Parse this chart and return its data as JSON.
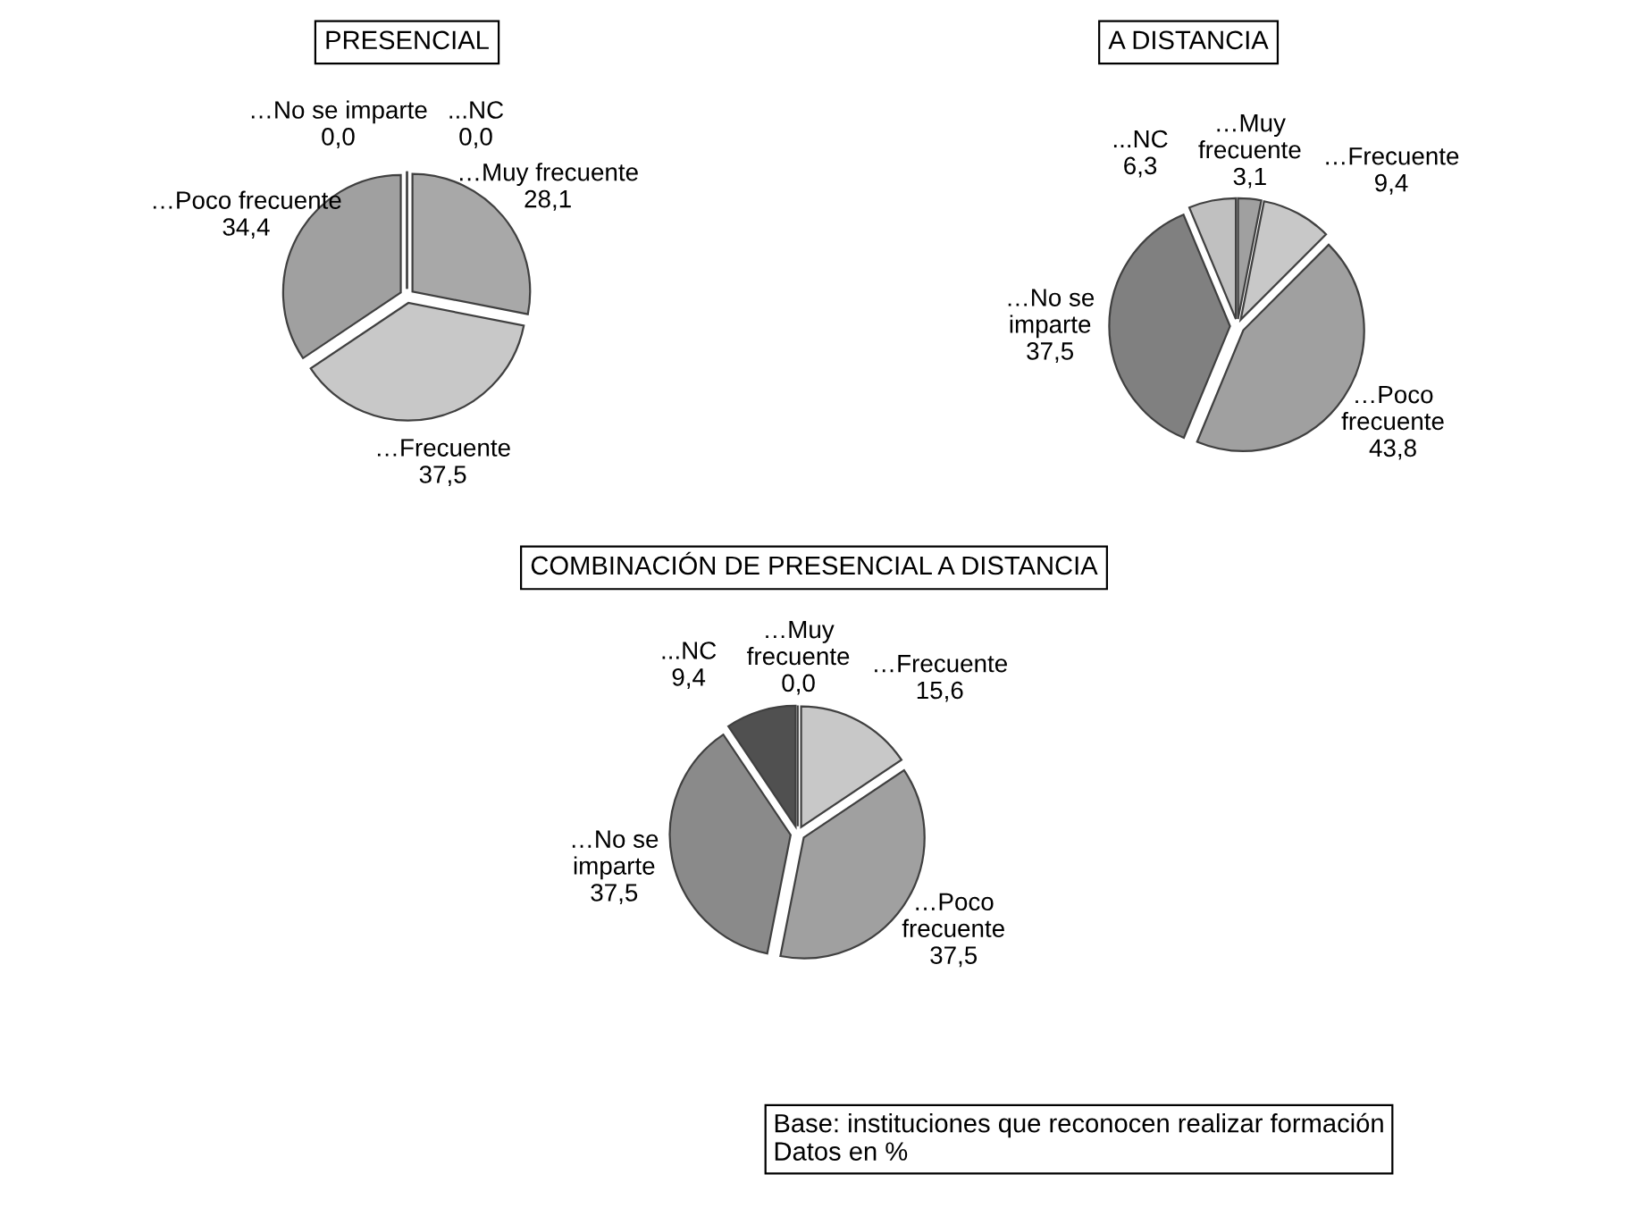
{
  "chart_data": [
    {
      "type": "pie",
      "title": "PRESENCIAL",
      "categories": [
        "…Muy frecuente",
        "…Frecuente",
        "…Poco frecuente",
        "…No se imparte",
        "...NC"
      ],
      "values": [
        28.1,
        37.5,
        34.4,
        0.0,
        0.0
      ],
      "value_labels": [
        "28,1",
        "37,5",
        "34,4",
        "0,0",
        "0,0"
      ],
      "colors": [
        "#a8a8a8",
        "#c8c8c8",
        "#a0a0a0",
        "#808080",
        "#c0c0c0"
      ]
    },
    {
      "type": "pie",
      "title": "A DISTANCIA",
      "categories": [
        "…Muy\nfrecuente",
        "…Frecuente",
        "…Poco\nfrecuente",
        "…No se\nimparte",
        "...NC"
      ],
      "values": [
        3.1,
        9.4,
        43.8,
        37.5,
        6.3
      ],
      "value_labels": [
        "3,1",
        "9,4",
        "43,8",
        "37,5",
        "6,3"
      ],
      "colors": [
        "#a0a0a0",
        "#c8c8c8",
        "#a0a0a0",
        "#808080",
        "#c0c0c0"
      ]
    },
    {
      "type": "pie",
      "title": "COMBINACIÓN DE PRESENCIAL A DISTANCIA",
      "categories": [
        "…Muy\nfrecuente",
        "…Frecuente",
        "…Poco\nfrecuente",
        "…No se\nimparte",
        "...NC"
      ],
      "values": [
        0.0,
        15.6,
        37.5,
        37.5,
        9.4
      ],
      "value_labels": [
        "0,0",
        "15,6",
        "37,5",
        "37,5",
        "9,4"
      ],
      "colors": [
        "#ffffff",
        "#c8c8c8",
        "#a0a0a0",
        "#8a8a8a",
        "#505050"
      ],
      "annotations": [
        "Base: instituciones que reconocen realizar formación\nDatos en %"
      ]
    }
  ]
}
